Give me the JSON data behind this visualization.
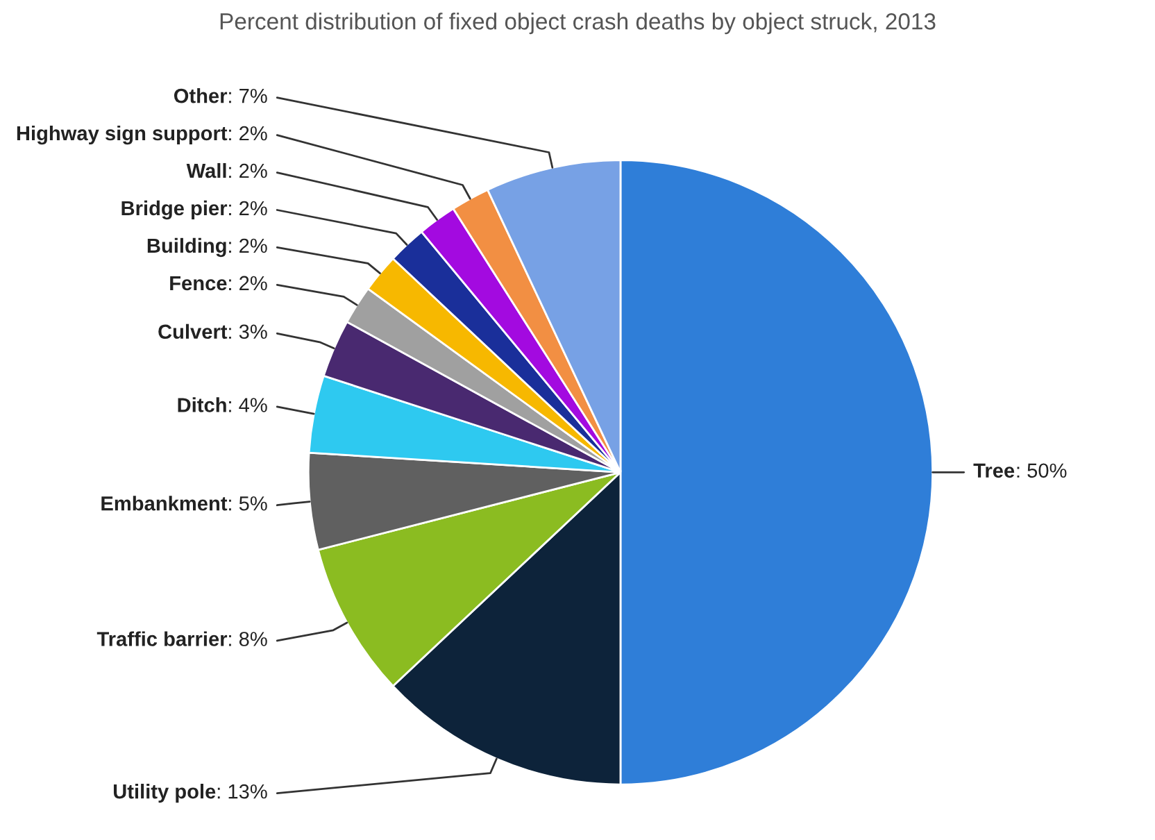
{
  "chart_data": {
    "type": "pie",
    "title": "Percent distribution of fixed object crash deaths by object struck, 2013",
    "categories": [
      "Tree",
      "Utility pole",
      "Traffic barrier",
      "Embankment",
      "Ditch",
      "Culvert",
      "Fence",
      "Building",
      "Bridge pier",
      "Wall",
      "Highway sign support",
      "Other"
    ],
    "values": [
      50,
      13,
      8,
      5,
      4,
      3,
      2,
      2,
      2,
      2,
      2,
      7
    ],
    "value_labels": [
      ": 50%",
      ": 13%",
      ": 8%",
      ": 5%",
      ": 4%",
      ": 3%",
      ": 2%",
      ": 2%",
      ": 2%",
      ": 2%",
      ": 2%",
      ": 7%"
    ],
    "colors": [
      "#2f7ed8",
      "#0d233a",
      "#8bbc21",
      "#606060",
      "#2ec9f0",
      "#492970",
      "#a0a0a0",
      "#f7b800",
      "#1a2f9a",
      "#a30ae0",
      "#f28f43",
      "#77a1e5"
    ],
    "legend": false
  }
}
